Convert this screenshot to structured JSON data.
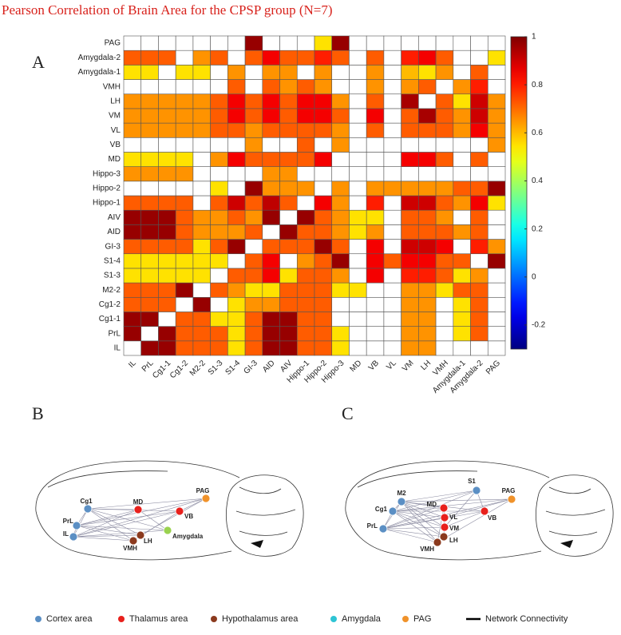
{
  "chart_data": {
    "type": "heatmap",
    "title": "Pearson Correlation of Brain Area for the CPSP group (N=7)",
    "panel_label": "A",
    "categories": [
      "IL",
      "PrL",
      "Cg1-1",
      "Cg1-2",
      "M2-2",
      "S1-3",
      "S1-4",
      "GI-3",
      "AID",
      "AIV",
      "Hippo-1",
      "Hippo-2",
      "Hippo-3",
      "MD",
      "VB",
      "VL",
      "VM",
      "LH",
      "VMH",
      "Amygdala-1",
      "Amygdala-2",
      "PAG"
    ],
    "values": [
      [
        null,
        0.97,
        0.97,
        0.72,
        0.72,
        0.72,
        0.55,
        0.72,
        0.97,
        0.97,
        0.72,
        0.72,
        0.55,
        null,
        null,
        null,
        0.65,
        0.65,
        null,
        null,
        null,
        null
      ],
      [
        0.97,
        null,
        0.97,
        0.72,
        0.72,
        0.72,
        0.55,
        0.72,
        0.97,
        0.97,
        0.72,
        0.72,
        0.55,
        null,
        null,
        null,
        0.65,
        0.65,
        null,
        0.55,
        0.72,
        null
      ],
      [
        0.97,
        0.97,
        null,
        0.72,
        0.72,
        0.55,
        0.55,
        0.72,
        0.97,
        0.97,
        0.72,
        0.72,
        null,
        null,
        null,
        null,
        0.65,
        0.65,
        null,
        0.55,
        0.72,
        null
      ],
      [
        0.72,
        0.72,
        0.72,
        null,
        0.97,
        null,
        0.55,
        0.65,
        0.65,
        0.72,
        0.72,
        0.72,
        null,
        null,
        null,
        null,
        0.65,
        0.65,
        null,
        0.55,
        0.72,
        null
      ],
      [
        0.72,
        0.72,
        0.72,
        0.97,
        null,
        0.72,
        0.65,
        0.55,
        0.55,
        0.72,
        0.72,
        0.72,
        0.55,
        0.55,
        null,
        null,
        0.65,
        0.65,
        0.55,
        0.72,
        0.72,
        null
      ],
      [
        0.55,
        0.55,
        0.55,
        0.55,
        0.55,
        null,
        0.72,
        0.72,
        0.85,
        0.55,
        0.72,
        0.72,
        0.65,
        null,
        0.85,
        null,
        0.8,
        0.8,
        0.72,
        0.55,
        0.65,
        null
      ],
      [
        0.55,
        0.55,
        0.55,
        0.55,
        0.55,
        0.55,
        null,
        0.72,
        0.85,
        null,
        0.65,
        0.72,
        0.97,
        null,
        0.85,
        0.72,
        0.85,
        0.85,
        0.72,
        0.72,
        null,
        0.97
      ],
      [
        0.72,
        0.72,
        0.72,
        0.72,
        0.55,
        0.72,
        0.97,
        null,
        0.72,
        0.72,
        0.72,
        0.97,
        0.72,
        null,
        0.85,
        null,
        0.9,
        0.9,
        0.85,
        null,
        0.8,
        0.65
      ],
      [
        0.97,
        0.97,
        0.97,
        0.72,
        0.65,
        0.65,
        0.65,
        0.72,
        null,
        0.97,
        0.72,
        0.72,
        0.65,
        0.55,
        0.65,
        null,
        0.72,
        0.72,
        0.72,
        0.65,
        0.72,
        null
      ],
      [
        0.97,
        0.97,
        0.97,
        0.72,
        0.65,
        0.65,
        0.72,
        0.65,
        0.97,
        null,
        0.97,
        0.72,
        0.65,
        0.55,
        0.55,
        null,
        0.72,
        0.72,
        0.65,
        null,
        0.72,
        null
      ],
      [
        0.72,
        0.72,
        0.72,
        0.72,
        null,
        0.72,
        0.9,
        0.72,
        0.92,
        0.72,
        null,
        0.85,
        0.65,
        null,
        0.8,
        null,
        0.9,
        0.9,
        0.72,
        0.65,
        0.85,
        0.55
      ],
      [
        null,
        null,
        null,
        null,
        null,
        0.55,
        null,
        0.97,
        0.65,
        0.65,
        0.65,
        null,
        0.65,
        null,
        0.65,
        0.65,
        0.65,
        0.65,
        0.65,
        0.72,
        0.72,
        0.97
      ],
      [
        0.65,
        0.65,
        0.65,
        0.65,
        null,
        null,
        null,
        null,
        0.65,
        0.65,
        null,
        null,
        null,
        null,
        null,
        null,
        null,
        null,
        null,
        null,
        null,
        null
      ],
      [
        0.55,
        0.55,
        0.55,
        0.55,
        null,
        0.65,
        0.85,
        0.72,
        0.72,
        0.72,
        0.72,
        0.85,
        null,
        null,
        null,
        null,
        0.85,
        0.85,
        0.72,
        null,
        0.72,
        null
      ],
      [
        null,
        null,
        null,
        null,
        null,
        null,
        null,
        0.65,
        null,
        null,
        0.72,
        null,
        0.65,
        null,
        null,
        null,
        null,
        null,
        null,
        null,
        null,
        0.65
      ],
      [
        0.65,
        0.65,
        0.65,
        0.65,
        0.65,
        0.72,
        0.72,
        0.65,
        0.72,
        0.72,
        0.72,
        0.72,
        0.65,
        null,
        0.72,
        null,
        0.72,
        0.72,
        0.72,
        0.65,
        0.85,
        0.65
      ],
      [
        0.65,
        0.65,
        0.65,
        0.65,
        0.65,
        0.72,
        0.85,
        0.72,
        0.85,
        0.72,
        0.85,
        0.85,
        0.72,
        null,
        0.85,
        null,
        0.72,
        0.95,
        0.72,
        0.65,
        0.9,
        0.65
      ],
      [
        0.65,
        0.65,
        0.65,
        0.65,
        0.65,
        0.72,
        0.85,
        0.72,
        0.85,
        0.72,
        0.85,
        0.85,
        0.65,
        null,
        0.72,
        null,
        0.95,
        null,
        0.72,
        0.55,
        0.9,
        0.65
      ],
      [
        null,
        null,
        null,
        null,
        null,
        null,
        0.72,
        null,
        0.72,
        0.65,
        0.72,
        0.65,
        null,
        null,
        0.65,
        null,
        0.65,
        0.72,
        null,
        0.65,
        0.8,
        null
      ],
      [
        0.55,
        0.55,
        null,
        0.55,
        0.55,
        null,
        0.65,
        null,
        0.65,
        0.65,
        null,
        0.65,
        null,
        null,
        0.65,
        null,
        0.6,
        0.55,
        0.65,
        null,
        0.72,
        null
      ],
      [
        0.72,
        0.72,
        0.72,
        null,
        0.65,
        0.72,
        null,
        0.72,
        0.85,
        0.72,
        0.72,
        0.8,
        0.72,
        null,
        0.72,
        null,
        0.8,
        0.85,
        0.72,
        null,
        null,
        0.55
      ],
      [
        null,
        null,
        null,
        null,
        null,
        null,
        null,
        0.97,
        null,
        null,
        null,
        0.55,
        0.97,
        null,
        null,
        null,
        null,
        null,
        null,
        null,
        null,
        null
      ]
    ],
    "zlim": [
      -0.3,
      1
    ],
    "zticks": [
      -0.2,
      0,
      0.2,
      0.4,
      0.6,
      0.8,
      1
    ],
    "colormap": "jet"
  },
  "diagrams": [
    {
      "panel_label": "B",
      "nodes": [
        {
          "label": "Cg1",
          "color": "#5b8fc4"
        },
        {
          "label": "PrL",
          "color": "#5b8fc4"
        },
        {
          "label": "IL",
          "color": "#5b8fc4"
        },
        {
          "label": "MD",
          "color": "#e8201c"
        },
        {
          "label": "VB",
          "color": "#e8201c"
        },
        {
          "label": "PAG",
          "color": "#f0922a"
        },
        {
          "label": "Amygdala",
          "color": "#9ad24f"
        },
        {
          "label": "LH",
          "color": "#8b3a1e"
        },
        {
          "label": "VMH",
          "color": "#8b3a1e"
        }
      ]
    },
    {
      "panel_label": "C",
      "nodes": [
        {
          "label": "M2",
          "color": "#5b8fc4"
        },
        {
          "label": "Cg1",
          "color": "#5b8fc4"
        },
        {
          "label": "PrL",
          "color": "#5b8fc4"
        },
        {
          "label": "S1",
          "color": "#5b8fc4"
        },
        {
          "label": "MD",
          "color": "#e8201c"
        },
        {
          "label": "VL",
          "color": "#e8201c"
        },
        {
          "label": "VM",
          "color": "#e8201c"
        },
        {
          "label": "LH",
          "color": "#8b3a1e"
        },
        {
          "label": "VMH",
          "color": "#8b3a1e"
        },
        {
          "label": "VB",
          "color": "#e8201c"
        },
        {
          "label": "PAG",
          "color": "#f0922a"
        }
      ]
    }
  ],
  "legend": [
    {
      "label": "Cortex area",
      "color": "#5b8fc4"
    },
    {
      "label": "Thalamus area",
      "color": "#e8201c"
    },
    {
      "label": "Hypothalamus area",
      "color": "#8b3a1e"
    },
    {
      "label": "Amygdala",
      "color": "#2ec4d4"
    },
    {
      "label": "PAG",
      "color": "#f0922a"
    },
    {
      "label": "Network Connectivity",
      "color": "#000000"
    }
  ]
}
